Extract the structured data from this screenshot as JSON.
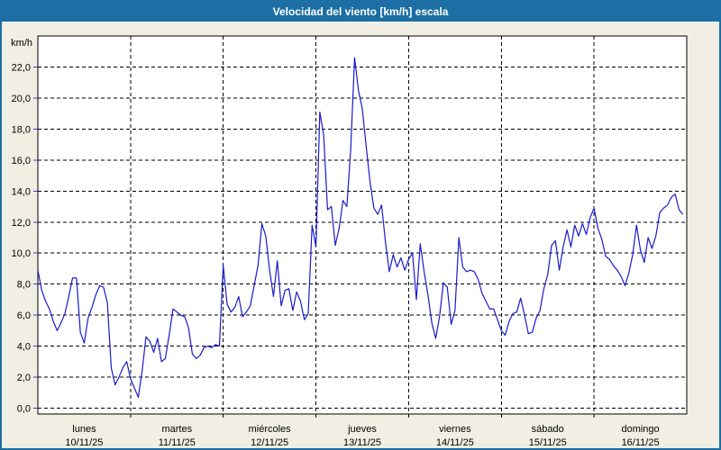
{
  "title": "Velocidad del viento [km/h] escala",
  "colors": {
    "titlebar": "#1c6ea4",
    "titlebar_text": "#ffffff",
    "frame": "#1c6ea4",
    "background": "#f1efe3",
    "plot_background": "#ffffff",
    "plot_border": "#000000",
    "grid": "#000000",
    "axis_tick": "#3a3ac8",
    "line": "#1a1acd",
    "label_text": "#000000"
  },
  "chart_data": {
    "type": "line",
    "title": "Velocidad del viento [km/h] escala",
    "ylabel": "km/h",
    "ylim": [
      0,
      24
    ],
    "y_ticks": [
      0,
      2,
      4,
      6,
      8,
      10,
      12,
      14,
      16,
      18,
      20,
      22
    ],
    "y_tick_labels": [
      "0,0",
      "2,0",
      "4,0",
      "6,0",
      "8,0",
      "10,0",
      "12,0",
      "14,0",
      "16,0",
      "18,0",
      "20,0",
      "22,0"
    ],
    "grid": "dashed",
    "legend_position": "none",
    "x_days": [
      {
        "name": "lunes",
        "date": "10/11/25"
      },
      {
        "name": "martes",
        "date": "11/11/25"
      },
      {
        "name": "miércoles",
        "date": "12/11/25"
      },
      {
        "name": "jueves",
        "date": "13/11/25"
      },
      {
        "name": "viernes",
        "date": "14/11/25"
      },
      {
        "name": "sábado",
        "date": "15/11/25"
      },
      {
        "name": "domingo",
        "date": "16/11/25"
      }
    ],
    "samples_per_day": 24,
    "series": [
      {
        "name": "Velocidad del viento [km/h]",
        "values": [
          8.9,
          7.6,
          6.9,
          6.4,
          5.6,
          5.0,
          5.5,
          6.1,
          7.2,
          8.4,
          8.4,
          4.9,
          4.2,
          5.8,
          6.5,
          7.3,
          7.9,
          7.8,
          6.8,
          2.6,
          1.5,
          2.0,
          2.6,
          3.0,
          1.9,
          1.3,
          0.7,
          2.4,
          4.6,
          4.3,
          3.6,
          4.5,
          3.0,
          3.2,
          4.7,
          6.4,
          6.2,
          6.0,
          5.9,
          5.2,
          3.5,
          3.2,
          3.4,
          3.9,
          4.0,
          3.9,
          4.1,
          4.0,
          9.2,
          6.7,
          6.2,
          6.5,
          7.2,
          5.9,
          6.2,
          6.6,
          7.9,
          9.2,
          11.9,
          11.1,
          8.9,
          7.2,
          9.5,
          6.6,
          7.6,
          7.7,
          6.3,
          7.5,
          6.9,
          5.7,
          6.1,
          11.8,
          10.4,
          19.1,
          17.6,
          12.8,
          13.0,
          10.5,
          11.6,
          13.4,
          13.0,
          16.7,
          22.6,
          20.5,
          19.3,
          16.9,
          14.6,
          12.9,
          12.5,
          13.1,
          10.7,
          8.8,
          9.9,
          9.1,
          9.7,
          8.9,
          9.6,
          10.0,
          7.0,
          10.6,
          8.8,
          7.3,
          5.5,
          4.5,
          5.9,
          8.1,
          7.8,
          5.4,
          6.3,
          11.0,
          9.1,
          8.8,
          8.9,
          8.8,
          8.3,
          7.4,
          6.9,
          6.4,
          6.4,
          5.7,
          5.0,
          4.7,
          5.6,
          6.1,
          6.2,
          7.1,
          6.0,
          4.8,
          4.9,
          5.8,
          6.3,
          7.7,
          8.6,
          10.5,
          10.8,
          8.9,
          10.4,
          11.5,
          10.4,
          11.8,
          11.1,
          11.9,
          11.2,
          12.3,
          12.9,
          11.6,
          10.9,
          9.8,
          9.6,
          9.2,
          8.9,
          8.5,
          7.9,
          8.7,
          9.9,
          11.8,
          10.2,
          9.4,
          11.0,
          10.3,
          11.1,
          12.6,
          12.9,
          13.1,
          13.6,
          13.8,
          12.8,
          12.5
        ]
      }
    ]
  }
}
